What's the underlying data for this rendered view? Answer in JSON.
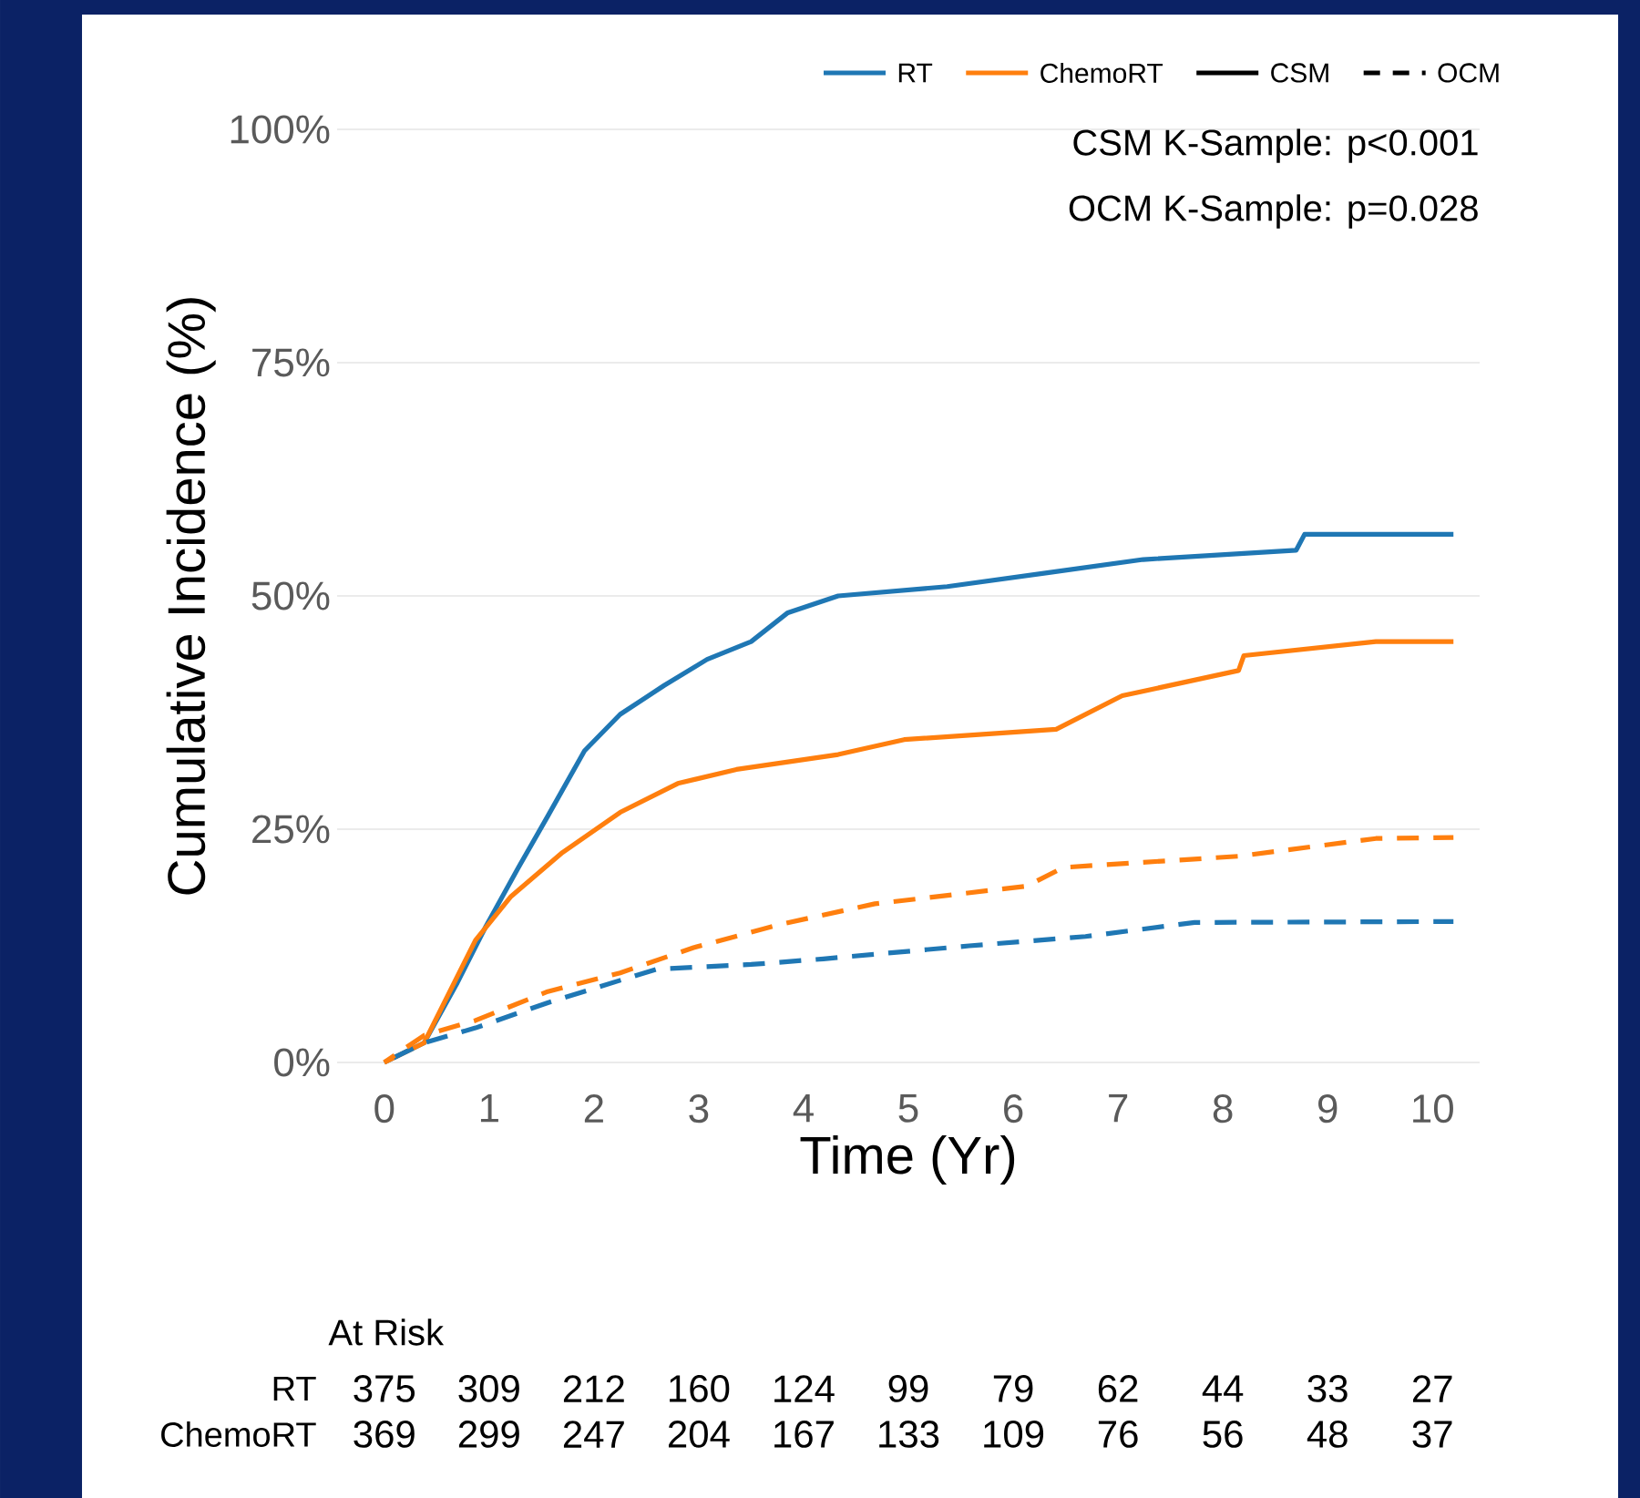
{
  "chart_data": {
    "type": "line",
    "xlabel": "Time (Yr)",
    "ylabel": "Cumulative Incidence (%)",
    "xlim": [
      -0.45,
      10.45
    ],
    "xticks": [
      0,
      1,
      2,
      3,
      4,
      5,
      6,
      7,
      8,
      9,
      10
    ],
    "ylim": [
      0,
      100
    ],
    "yticks": [
      {
        "value": 0,
        "label": "0%"
      },
      {
        "value": 25,
        "label": "25%"
      },
      {
        "value": 50,
        "label": "50%"
      },
      {
        "value": 75,
        "label": "75%"
      },
      {
        "value": 100,
        "label": "100%"
      }
    ],
    "grid": "y",
    "series": [
      {
        "color": "#1f77b4",
        "line_style": "solid",
        "x": [
          0,
          0.38,
          0.69,
          0.97,
          1.28,
          1.56,
          1.91,
          2.25,
          2.67,
          3.08,
          3.5,
          3.85,
          4.33,
          5.37,
          6.34,
          7.24,
          8.7,
          8.78,
          10.2
        ],
        "values": [
          0,
          2.1,
          8.4,
          14.6,
          20.9,
          26.4,
          33.4,
          37.3,
          40.4,
          43.2,
          45.1,
          48.2,
          50.0,
          51.0,
          52.5,
          53.9,
          54.9,
          56.6,
          56.6
        ]
      },
      {
        "color": "#ff7f0e",
        "line_style": "solid",
        "x": [
          0,
          0.38,
          0.87,
          1.21,
          1.7,
          2.25,
          2.8,
          3.36,
          4.33,
          4.96,
          6.41,
          7.04,
          8.15,
          8.2,
          9.46,
          10.2
        ],
        "values": [
          0,
          2.1,
          13.1,
          17.8,
          22.5,
          26.8,
          29.9,
          31.4,
          33.0,
          34.6,
          35.7,
          39.3,
          42.0,
          43.6,
          45.1,
          45.1
        ]
      },
      {
        "color": "#1f77b4",
        "line_style": "dashed",
        "x": [
          0,
          0.38,
          0.87,
          1.56,
          2.25,
          2.6,
          3.5,
          4.19,
          5.58,
          6.69,
          7.73,
          10.2
        ],
        "values": [
          0,
          2.1,
          3.7,
          6.4,
          8.8,
          10.0,
          10.5,
          11.1,
          12.5,
          13.5,
          15.0,
          15.1
        ]
      },
      {
        "color": "#ff7f0e",
        "line_style": "dashed",
        "x": [
          0,
          0.38,
          0.87,
          1.56,
          2.25,
          2.95,
          3.78,
          4.68,
          6.13,
          6.48,
          8.15,
          9.46,
          10.2
        ],
        "values": [
          0,
          2.9,
          4.5,
          7.6,
          9.6,
          12.3,
          14.8,
          17.0,
          18.9,
          20.9,
          22.1,
          24.0,
          24.1
        ]
      }
    ],
    "annotations": [
      "RT",
      "ChemoRT",
      "CSM",
      "OCM",
      "CSM K-Sample: p<0.001",
      "OCM K-Sample: p=0.028",
      "At Risk",
      "RT",
      "375",
      "309",
      "212",
      "160",
      "124",
      "99",
      "79",
      "62",
      "44",
      "33",
      "27",
      "ChemoRT",
      "369",
      "299",
      "247",
      "204",
      "167",
      "133",
      "109",
      "76",
      "56",
      "48",
      "37"
    ]
  }
}
